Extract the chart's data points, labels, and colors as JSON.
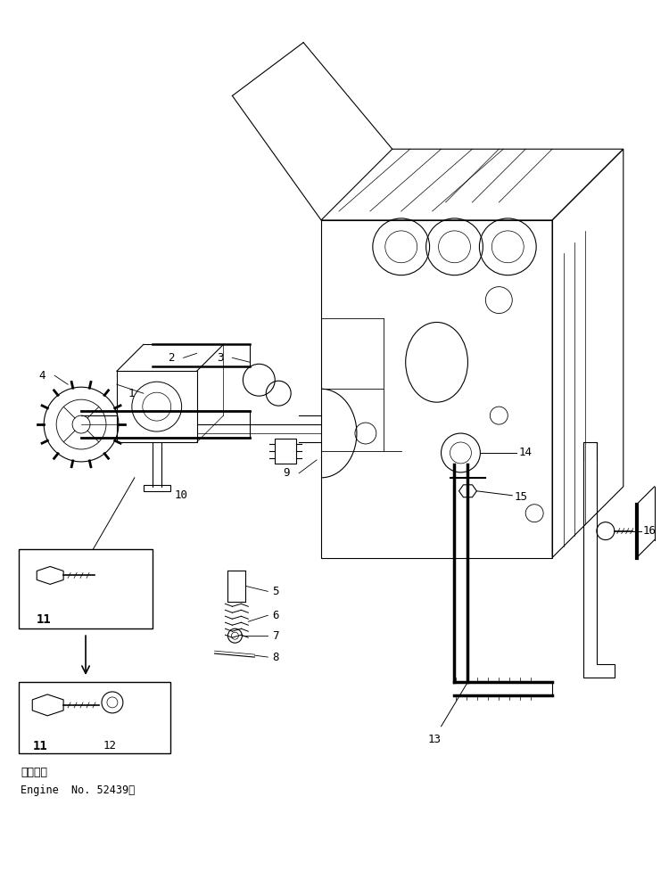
{
  "background_color": "#ffffff",
  "line_color": "#000000",
  "fig_width": 7.5,
  "fig_height": 9.86,
  "dpi": 100,
  "caption_line1": "適用号機",
  "caption_line2": "Engine  No. 52439～"
}
